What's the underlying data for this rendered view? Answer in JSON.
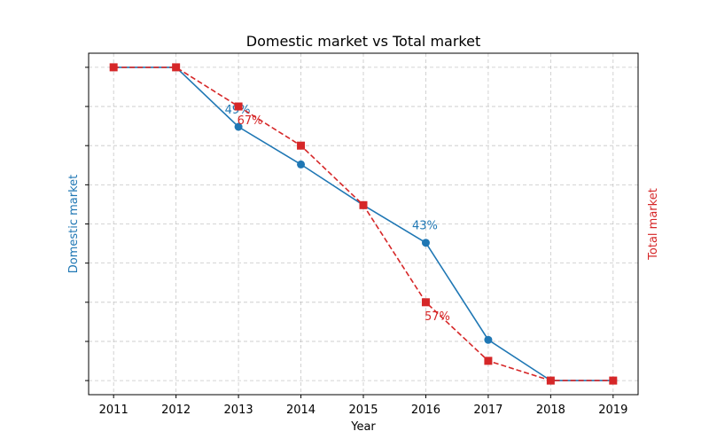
{
  "chart_data": {
    "type": "line",
    "title": "Domestic market vs Total market",
    "xlabel": "Year",
    "ylabel_left": "Domestic market",
    "ylabel_right": "Total market",
    "grid": true,
    "y_ticks_labeled": false,
    "x": [
      2011,
      2012,
      2013,
      2014,
      2015,
      2016,
      2017,
      2018,
      2019
    ],
    "xlim": [
      2010.6,
      2019.4
    ],
    "series": [
      {
        "name": "Domestic market",
        "axis": "left",
        "color": "#1f77b4",
        "line_style": "solid",
        "marker": "circle",
        "values": [
          1.0,
          1.0,
          0.81,
          0.69,
          0.56,
          0.44,
          0.13,
          0.0,
          0.0
        ],
        "ylim": [
          -0.045,
          1.045
        ],
        "annotations": [
          {
            "index": 2,
            "text": "49%"
          },
          {
            "index": 5,
            "text": "43%"
          }
        ]
      },
      {
        "name": "Total market",
        "axis": "right",
        "color": "#d62728",
        "line_style": "dashed",
        "marker": "square",
        "values": [
          1.0,
          1.0,
          0.875,
          0.75,
          0.56,
          0.25,
          0.063,
          0.0,
          0.0
        ],
        "ylim": [
          -0.045,
          1.045
        ],
        "annotations": [
          {
            "index": 2,
            "text": "67%"
          },
          {
            "index": 5,
            "text": "57%"
          }
        ]
      }
    ]
  }
}
